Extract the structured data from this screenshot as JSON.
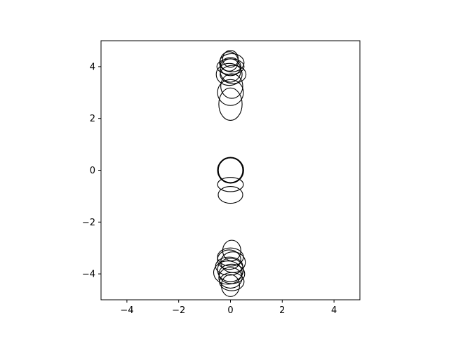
{
  "chart_data": {
    "type": "scatter",
    "title": "",
    "xlabel": "",
    "ylabel": "",
    "xlim": [
      -5,
      5
    ],
    "ylim": [
      -5,
      5
    ],
    "grid": false,
    "aspect": "equal",
    "xticks": [
      -4,
      -2,
      0,
      2,
      4
    ],
    "yticks": [
      -4,
      -2,
      0,
      2,
      4
    ],
    "xtick_labels": [
      "−4",
      "−2",
      "0",
      "2",
      "4"
    ],
    "ytick_labels": [
      "−4",
      "−2",
      "0",
      "2",
      "4"
    ],
    "marker": "unfilled ellipse",
    "edge_color": "#000000",
    "series": [
      {
        "name": "ellipses",
        "ellipses": [
          {
            "x": 0.0,
            "y": 2.55,
            "width": 0.9,
            "height": 1.25
          },
          {
            "x": 0.0,
            "y": 3.0,
            "width": 1.0,
            "height": 1.0
          },
          {
            "x": 0.05,
            "y": 3.25,
            "width": 0.85,
            "height": 0.95
          },
          {
            "x": -0.05,
            "y": 3.7,
            "width": 1.0,
            "height": 0.85
          },
          {
            "x": 0.1,
            "y": 3.7,
            "width": 1.0,
            "height": 0.7
          },
          {
            "x": 0.0,
            "y": 3.85,
            "width": 0.8,
            "height": 0.9
          },
          {
            "x": 0.0,
            "y": 4.0,
            "width": 0.8,
            "height": 0.7
          },
          {
            "x": 0.05,
            "y": 4.15,
            "width": 0.95,
            "height": 0.7
          },
          {
            "x": -0.05,
            "y": 4.2,
            "width": 0.7,
            "height": 0.75
          },
          {
            "x": 0.0,
            "y": 4.3,
            "width": 0.6,
            "height": 0.65
          },
          {
            "x": 0.0,
            "y": 4.0,
            "width": 1.05,
            "height": 0.6
          },
          {
            "x": 0.0,
            "y": 0.0,
            "width": 1.0,
            "height": 1.0
          },
          {
            "x": 0.0,
            "y": 0.0,
            "width": 0.95,
            "height": 0.95
          },
          {
            "x": 0.02,
            "y": 0.0,
            "width": 0.98,
            "height": 0.98
          },
          {
            "x": 0.0,
            "y": -0.55,
            "width": 1.0,
            "height": 0.55
          },
          {
            "x": 0.0,
            "y": -0.95,
            "width": 0.95,
            "height": 0.65
          },
          {
            "x": 0.05,
            "y": -3.1,
            "width": 0.7,
            "height": 0.8
          },
          {
            "x": 0.0,
            "y": -3.35,
            "width": 1.0,
            "height": 0.7
          },
          {
            "x": -0.05,
            "y": -3.45,
            "width": 0.9,
            "height": 0.75
          },
          {
            "x": 0.1,
            "y": -3.55,
            "width": 0.95,
            "height": 0.8
          },
          {
            "x": -0.05,
            "y": -3.7,
            "width": 1.05,
            "height": 0.7
          },
          {
            "x": 0.0,
            "y": -3.85,
            "width": 1.0,
            "height": 0.9
          },
          {
            "x": -0.1,
            "y": -3.95,
            "width": 1.1,
            "height": 0.9
          },
          {
            "x": 0.05,
            "y": -4.0,
            "width": 1.0,
            "height": 0.75
          },
          {
            "x": 0.0,
            "y": -4.15,
            "width": 0.9,
            "height": 0.8
          },
          {
            "x": 0.05,
            "y": -4.3,
            "width": 0.95,
            "height": 0.7
          },
          {
            "x": 0.0,
            "y": -4.45,
            "width": 0.7,
            "height": 0.85
          }
        ]
      }
    ]
  }
}
